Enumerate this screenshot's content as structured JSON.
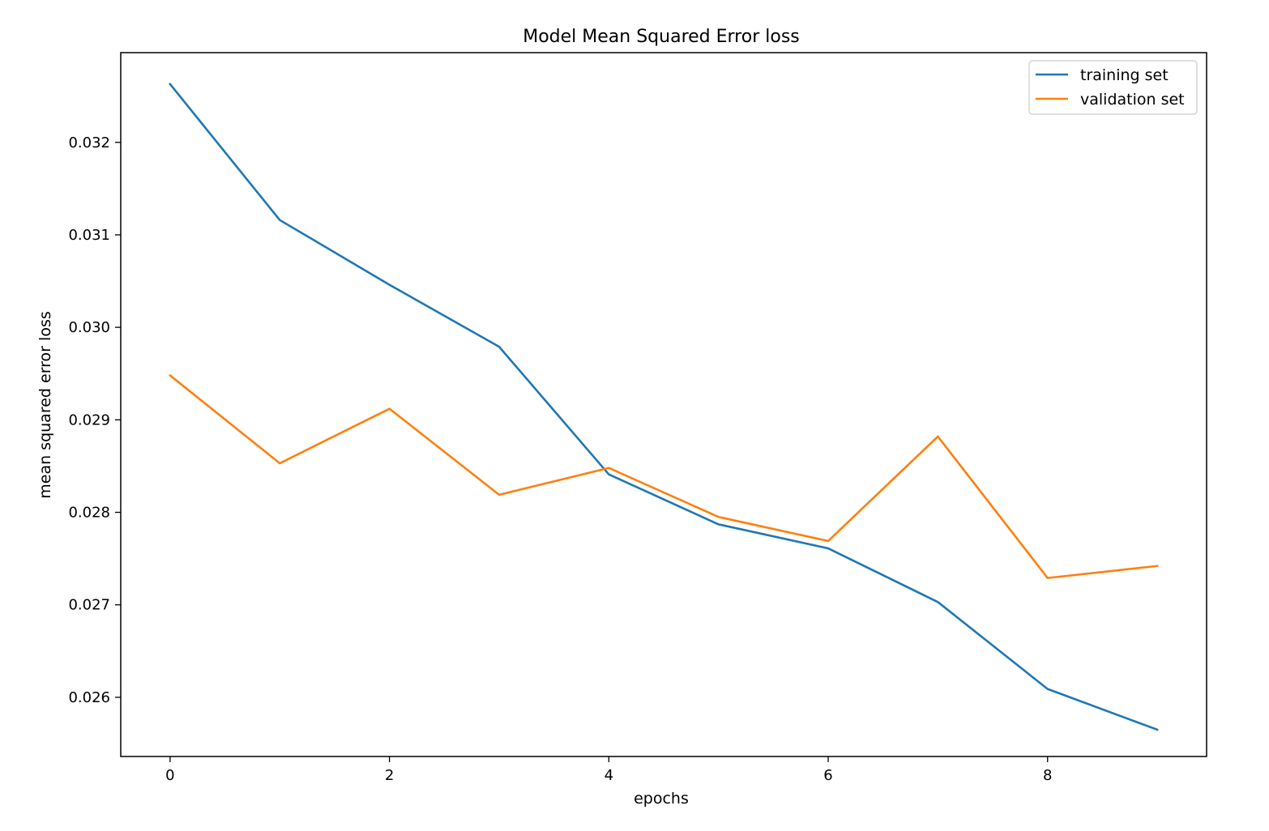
{
  "chart_data": {
    "type": "line",
    "title": "Model Mean Squared Error loss",
    "xlabel": "epochs",
    "ylabel": "mean squared error loss",
    "x": [
      0,
      1,
      2,
      3,
      4,
      5,
      6,
      7,
      8,
      9
    ],
    "series": [
      {
        "name": "training set",
        "color": "#1f77b4",
        "values": [
          0.03263,
          0.03116,
          0.03046,
          0.02979,
          0.02841,
          0.02787,
          0.02761,
          0.02703,
          0.02609,
          0.02565
        ]
      },
      {
        "name": "validation set",
        "color": "#ff7f0e",
        "values": [
          0.02948,
          0.02853,
          0.02912,
          0.02819,
          0.02848,
          0.02795,
          0.02769,
          0.02882,
          0.02729,
          0.02742
        ]
      }
    ],
    "xlim": [
      -0.45,
      9.45
    ],
    "ylim": [
      0.02536,
      0.03297
    ],
    "xticks": [
      {
        "value": 0,
        "label": "0"
      },
      {
        "value": 2,
        "label": "2"
      },
      {
        "value": 4,
        "label": "4"
      },
      {
        "value": 6,
        "label": "6"
      },
      {
        "value": 8,
        "label": "8"
      }
    ],
    "yticks": [
      {
        "value": 0.026,
        "label": "0.026"
      },
      {
        "value": 0.027,
        "label": "0.027"
      },
      {
        "value": 0.028,
        "label": "0.028"
      },
      {
        "value": 0.029,
        "label": "0.029"
      },
      {
        "value": 0.03,
        "label": "0.030"
      },
      {
        "value": 0.031,
        "label": "0.031"
      },
      {
        "value": 0.032,
        "label": "0.032"
      }
    ],
    "grid": false,
    "legend_position": "top-right"
  }
}
